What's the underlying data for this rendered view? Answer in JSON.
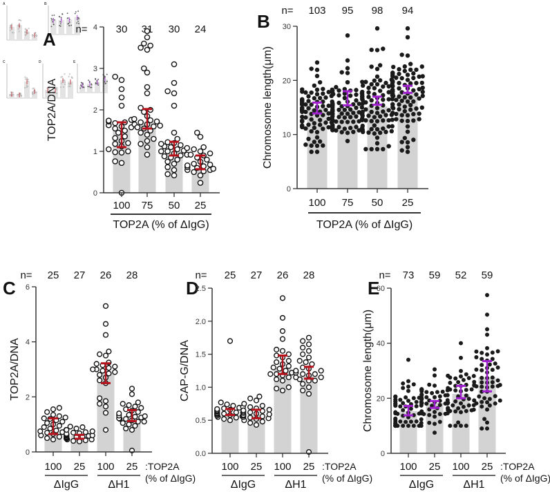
{
  "figure": {
    "thumbnail_inset": "miniature copy of full figure (panels A–E)",
    "colors": {
      "bar": "#d3d3d3",
      "axis": "#333333",
      "errorbar_red": "#b5121b",
      "errorbar_purple": "#a020d0",
      "dot_filled": "#1a1a1a"
    }
  },
  "chart_data": [
    {
      "panel": "A",
      "type": "bar",
      "ylabel": "TOP2A/DNA",
      "xlabel": "TOP2A (% of ΔIgG)",
      "categories": [
        "100",
        "75",
        "50",
        "25"
      ],
      "n_prefix": "n=",
      "n": [
        "30",
        "31",
        "30",
        "24"
      ],
      "ylim": [
        0,
        4
      ],
      "yticks": [
        "0",
        "1",
        "2",
        "3",
        "4"
      ],
      "values": [
        1.53,
        1.72,
        1.0,
        0.57
      ],
      "errorbars": [
        [
          1.1,
          1.7
        ],
        [
          1.55,
          2.02
        ],
        [
          0.9,
          1.23
        ],
        [
          0.57,
          0.9
        ]
      ],
      "errorbar_color": "red",
      "points_style": "open-circles",
      "points": [
        [
          0,
          0.72,
          0.76,
          0.97,
          0.98,
          1.0,
          1.05,
          1.12,
          1.18,
          1.2,
          1.25,
          1.32,
          1.36,
          1.45,
          1.5,
          1.55,
          1.58,
          1.6,
          1.63,
          1.65,
          1.68,
          1.7,
          1.72,
          1.74,
          1.76,
          2.1,
          2.3,
          2.5,
          2.72,
          2.8
        ],
        [
          0.92,
          1.1,
          1.18,
          1.25,
          1.3,
          1.4,
          1.45,
          1.5,
          1.55,
          1.58,
          1.6,
          1.62,
          1.65,
          1.7,
          1.72,
          1.75,
          1.78,
          1.85,
          1.95,
          2.05,
          2.4,
          2.55,
          2.9,
          3.0,
          3.45,
          3.5,
          3.55,
          3.75,
          3.9,
          3.6,
          2.0
        ],
        [
          0.42,
          0.45,
          0.55,
          0.62,
          0.7,
          0.75,
          0.8,
          0.85,
          0.9,
          0.92,
          0.95,
          1.0,
          1.02,
          1.05,
          1.08,
          1.1,
          1.12,
          1.15,
          1.18,
          1.2,
          1.22,
          1.3,
          1.45,
          2.1,
          2.4,
          2.45,
          2.65,
          3.1,
          1.0,
          0.88
        ],
        [
          0.24,
          0.42,
          0.5,
          0.52,
          0.55,
          0.58,
          0.6,
          0.62,
          0.64,
          0.66,
          0.7,
          0.75,
          0.8,
          0.85,
          0.9,
          0.92,
          0.95,
          1.0,
          1.05,
          1.1,
          1.35,
          1.45,
          0.68,
          0.55
        ]
      ]
    },
    {
      "panel": "B",
      "type": "bar",
      "ylabel": "Chromosome length(μm)",
      "xlabel": "TOP2A (% of ΔIgG)",
      "categories": [
        "100",
        "75",
        "50",
        "25"
      ],
      "n_prefix": "n=",
      "n": [
        "103",
        "95",
        "98",
        "94"
      ],
      "ylim": [
        0,
        30
      ],
      "yticks": [
        "0",
        "10",
        "20",
        "30"
      ],
      "values": [
        14.9,
        14.7,
        15.2,
        17.7
      ],
      "errorbars": [
        [
          13.9,
          15.9
        ],
        [
          15.4,
          18.0
        ],
        [
          15.5,
          17.0
        ],
        [
          17.7,
          19.0
        ]
      ],
      "errorbar_color": "purple",
      "points_style": "filled-dots",
      "point_ranges": [
        [
          6.8,
          23.3
        ],
        [
          8.8,
          28.3
        ],
        [
          7.3,
          29.6
        ],
        [
          6.8,
          29.6
        ]
      ]
    },
    {
      "panel": "C",
      "type": "bar",
      "ylabel": "TOP2A/DNA",
      "categories": [
        "100",
        "25",
        "100",
        "25"
      ],
      "groups": [
        {
          "label": "ΔIgG",
          "categories": [
            0,
            1
          ]
        },
        {
          "label": "ΔH1",
          "categories": [
            2,
            3
          ]
        }
      ],
      "category_note": [
        ":TOP2A",
        "(% of ΔIgG)"
      ],
      "n_prefix": "n=",
      "n": [
        "25",
        "27",
        "26",
        "28"
      ],
      "ylim": [
        0,
        6
      ],
      "yticks": [
        "0",
        "2",
        "4",
        "6"
      ],
      "values": [
        0.68,
        0.58,
        2.9,
        1.23
      ],
      "errorbars": [
        [
          0.65,
          1.22
        ],
        [
          0.48,
          0.62
        ],
        [
          2.5,
          3.22
        ],
        [
          1.12,
          1.52
        ]
      ],
      "errorbar_color": "red",
      "points_style": "open-circles",
      "points": [
        [
          0.45,
          0.5,
          0.55,
          0.6,
          0.65,
          0.7,
          0.72,
          0.75,
          0.78,
          0.8,
          0.85,
          0.9,
          0.95,
          1.0,
          1.05,
          1.1,
          1.15,
          1.2,
          1.22,
          1.25,
          1.3,
          1.35,
          1.45,
          1.55,
          1.6
        ],
        [
          0.38,
          0.4,
          0.42,
          0.45,
          0.48,
          0.5,
          0.5,
          0.52,
          0.54,
          0.55,
          0.56,
          0.58,
          0.6,
          0.62,
          0.64,
          0.66,
          0.68,
          0.7,
          0.72,
          0.75,
          0.8,
          0.85,
          0.9,
          0.92,
          0.45,
          0.55,
          0.6
        ],
        [
          0.8,
          1.42,
          1.65,
          1.75,
          1.85,
          1.95,
          2.5,
          2.6,
          2.7,
          2.8,
          2.85,
          2.9,
          2.95,
          3.0,
          3.05,
          3.1,
          3.15,
          3.2,
          3.25,
          3.5,
          3.55,
          3.65,
          4.25,
          4.65,
          5.3,
          3.0
        ],
        [
          0.05,
          0.8,
          0.85,
          0.95,
          1.0,
          1.05,
          1.1,
          1.15,
          1.2,
          1.22,
          1.25,
          1.28,
          1.3,
          1.32,
          1.35,
          1.4,
          1.45,
          1.5,
          1.55,
          1.6,
          1.65,
          1.7,
          1.75,
          1.8,
          2.1,
          2.3,
          1.2,
          1.1
        ]
      ]
    },
    {
      "panel": "D",
      "type": "bar",
      "ylabel": "CAP-G/DNA",
      "categories": [
        "100",
        "25",
        "100",
        "25"
      ],
      "groups": [
        {
          "label": "ΔIgG",
          "categories": [
            0,
            1
          ]
        },
        {
          "label": "ΔH1",
          "categories": [
            2,
            3
          ]
        }
      ],
      "category_note": [
        ":TOP2A",
        "(% of ΔIgG)"
      ],
      "n_prefix": "n=",
      "n": [
        "25",
        "27",
        "26",
        "28"
      ],
      "ylim": [
        0,
        2.5
      ],
      "yticks": [
        "0.0",
        "0.5",
        "1.0",
        "1.5",
        "2.0",
        "2.5"
      ],
      "values": [
        0.6,
        0.58,
        1.3,
        1.2
      ],
      "errorbars": [
        [
          0.58,
          0.67
        ],
        [
          0.53,
          0.66
        ],
        [
          1.2,
          1.48
        ],
        [
          1.13,
          1.31
        ]
      ],
      "errorbar_color": "red",
      "points_style": "open-circles",
      "points": [
        [
          0.5,
          0.52,
          0.54,
          0.55,
          0.56,
          0.57,
          0.58,
          0.59,
          0.6,
          0.6,
          0.61,
          0.62,
          0.62,
          0.63,
          0.64,
          0.65,
          0.66,
          0.67,
          0.68,
          0.69,
          0.7,
          0.72,
          0.74,
          0.77,
          1.7
        ],
        [
          0.43,
          0.46,
          0.48,
          0.5,
          0.52,
          0.53,
          0.54,
          0.55,
          0.56,
          0.57,
          0.58,
          0.59,
          0.6,
          0.61,
          0.62,
          0.63,
          0.64,
          0.65,
          0.66,
          0.68,
          0.7,
          0.72,
          0.75,
          0.8,
          0.83,
          0.86,
          0.58
        ],
        [
          0.95,
          0.98,
          1.0,
          1.1,
          1.12,
          1.15,
          1.18,
          1.2,
          1.22,
          1.25,
          1.28,
          1.3,
          1.32,
          1.35,
          1.38,
          1.4,
          1.45,
          1.48,
          1.5,
          1.55,
          1.57,
          1.73,
          1.85,
          2.05,
          2.35,
          1.2
        ],
        [
          0.02,
          0.9,
          0.95,
          1.0,
          1.05,
          1.1,
          1.12,
          1.15,
          1.18,
          1.2,
          1.22,
          1.25,
          1.28,
          1.3,
          1.35,
          1.38,
          1.4,
          1.45,
          1.5,
          1.55,
          1.6,
          1.65,
          1.7,
          1.75,
          1.2,
          1.25,
          1.15,
          1.1
        ]
      ]
    },
    {
      "panel": "E",
      "type": "bar",
      "ylabel": "Chromosome length(μm)",
      "categories": [
        "100",
        "25",
        "100",
        "25"
      ],
      "groups": [
        {
          "label": "ΔIgG",
          "categories": [
            0,
            1
          ]
        },
        {
          "label": "ΔH1",
          "categories": [
            2,
            3
          ]
        }
      ],
      "category_note": [
        ":TOP2A",
        "(% of ΔIgG)"
      ],
      "n_prefix": "n=",
      "n": [
        "73",
        "59",
        "52",
        "59"
      ],
      "ylim": [
        0,
        60
      ],
      "yticks": [
        "0",
        "20",
        "40",
        "60"
      ],
      "values": [
        15.3,
        18.3,
        21.6,
        27.6
      ],
      "errorbars": [
        [
          13.8,
          17.2
        ],
        [
          16.5,
          19.0
        ],
        [
          20.0,
          24.5
        ],
        [
          22.5,
          33.5
        ]
      ],
      "errorbar_color": "purple",
      "points_style": "filled-dots",
      "point_ranges": [
        [
          10.0,
          34.0
        ],
        [
          7.5,
          30.5
        ],
        [
          10.0,
          40.0
        ],
        [
          9.0,
          57.5
        ]
      ]
    }
  ],
  "panel_letters": [
    "A",
    "B",
    "C",
    "D",
    "E"
  ]
}
